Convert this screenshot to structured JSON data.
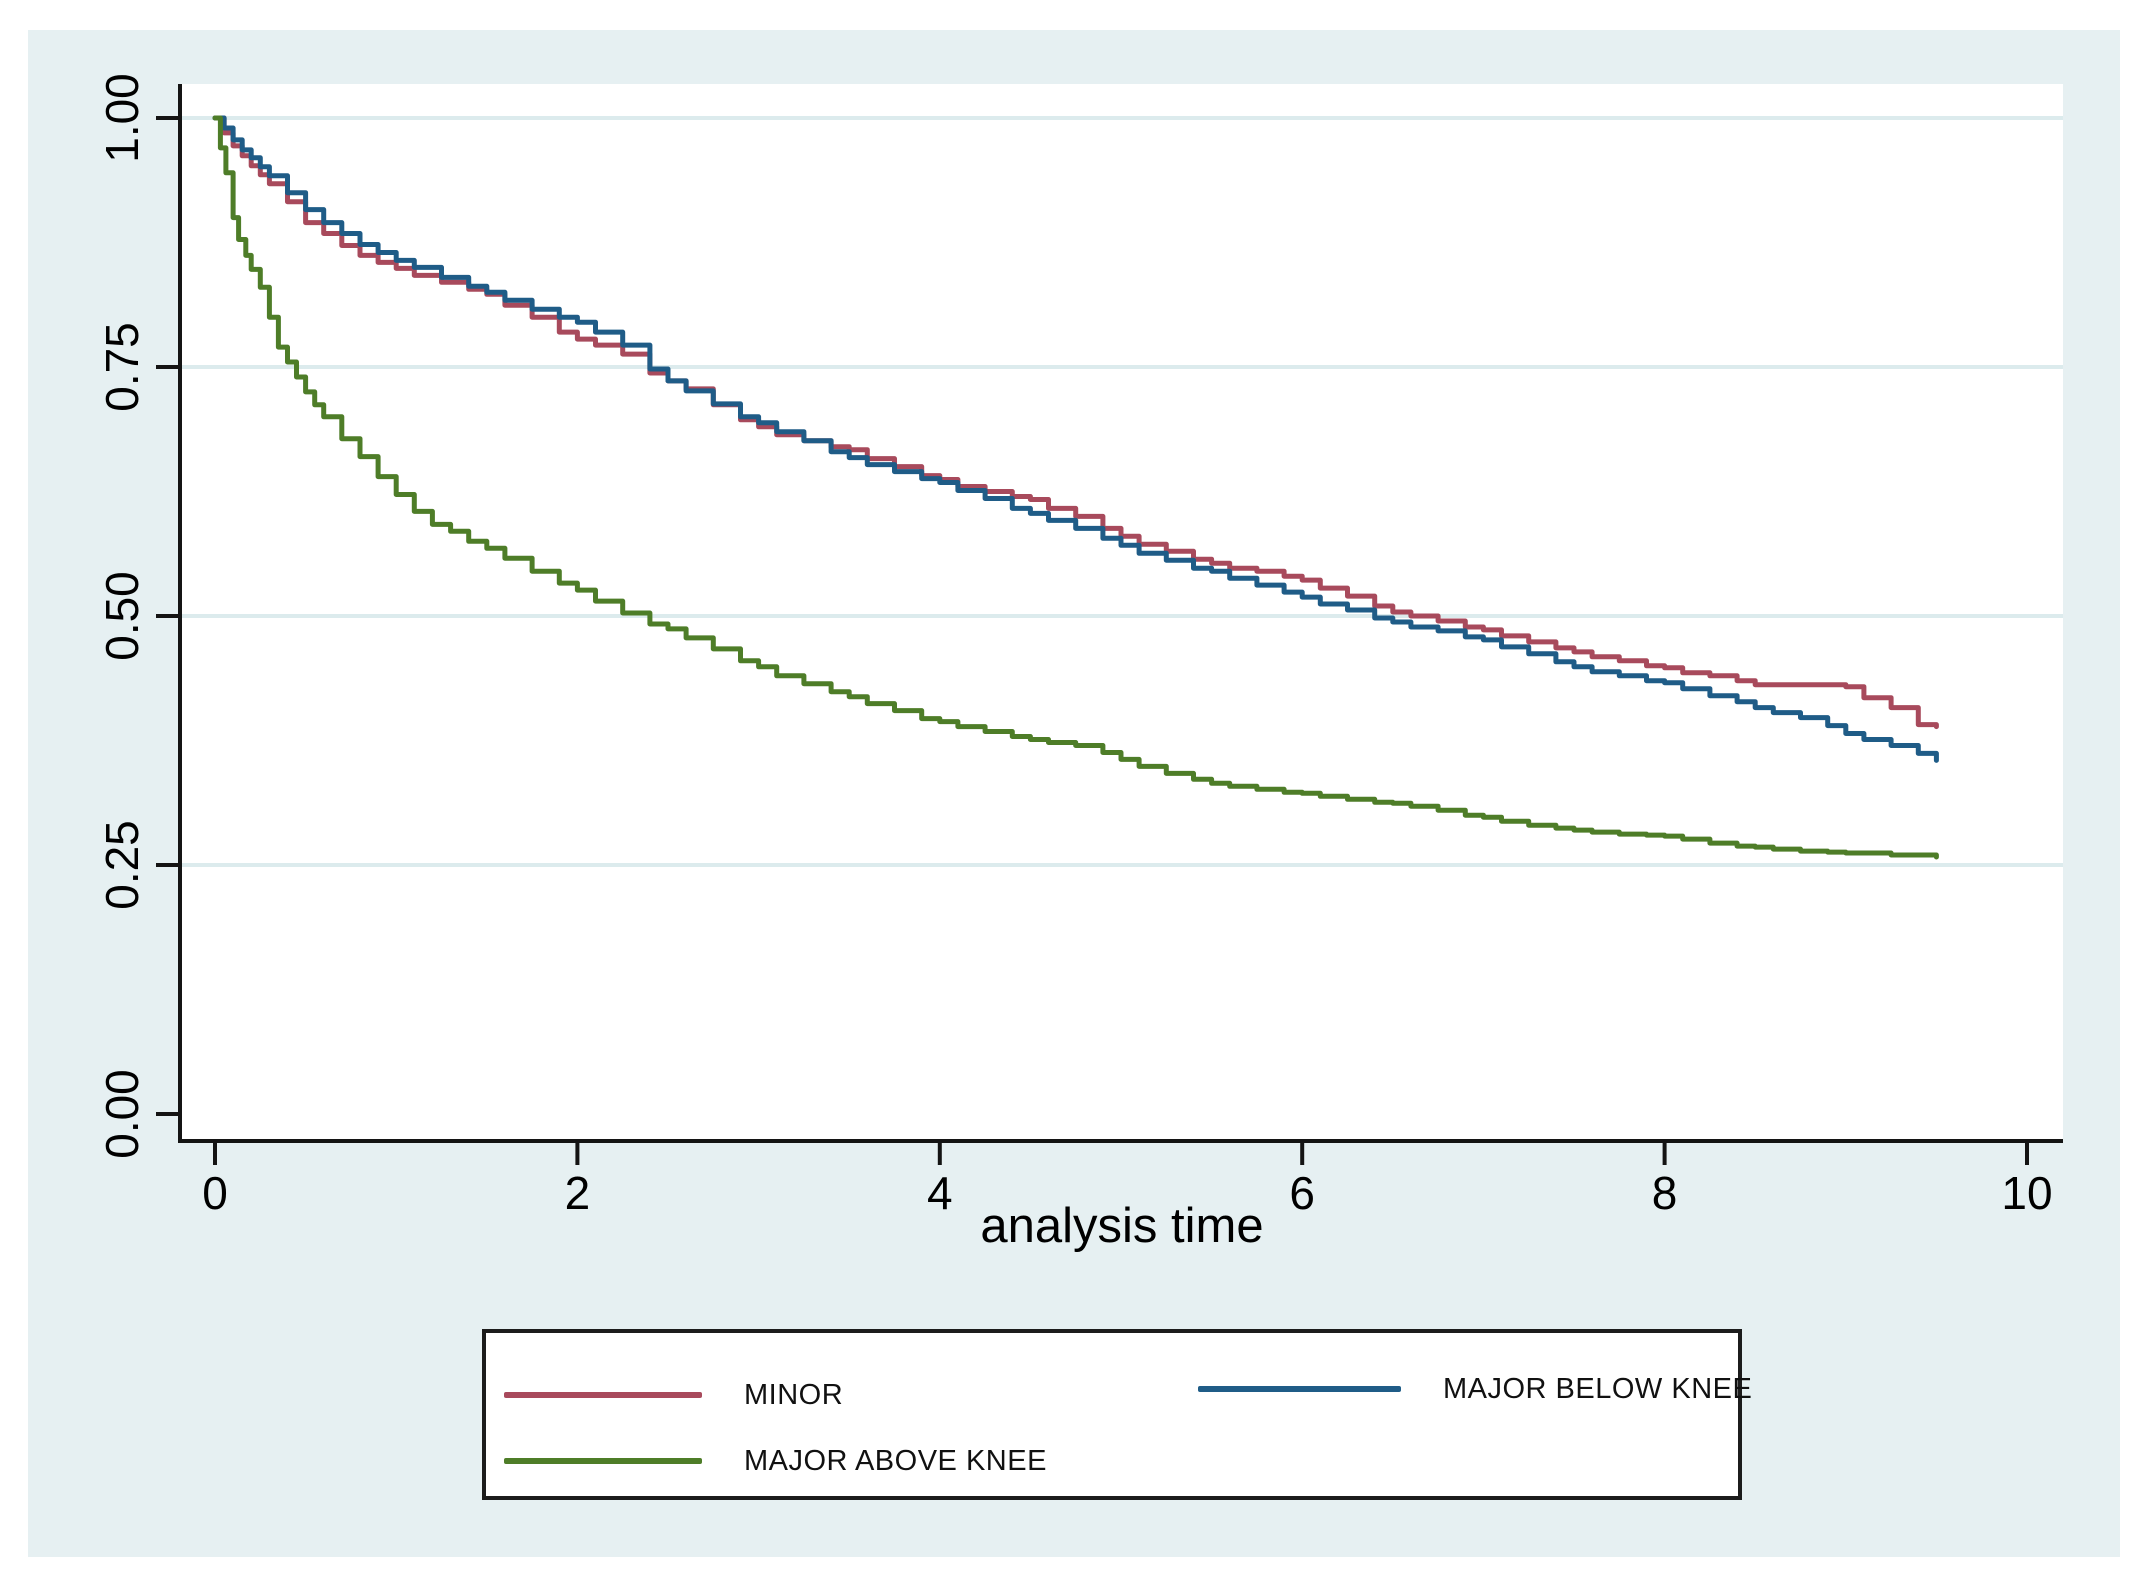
{
  "figure": {
    "xlabel": "analysis time",
    "x_tick_labels": [
      "0",
      "2",
      "4",
      "6",
      "8",
      "10"
    ],
    "y_tick_labels": [
      "0.00",
      "0.25",
      "0.50",
      "0.75",
      "1.00"
    ],
    "colors": {
      "canvas": "#e6f0f2",
      "plot_background": "#ffffff",
      "grid": "#dcebed",
      "axis": "#141414",
      "text": "#000000",
      "legend_border": "#1c1c1c",
      "legend_background": "#ffffff"
    }
  },
  "legend": {
    "items": [
      {
        "label": "MINOR",
        "series": "MINOR"
      },
      {
        "label": "MAJOR BELOW KNEE",
        "series": "MAJOR BELOW KNEE"
      },
      {
        "label": "MAJOR ABOVE KNEE",
        "series": "MAJOR ABOVE KNEE"
      }
    ]
  },
  "chart_data": {
    "type": "line",
    "style": "kaplan-meier-step",
    "title": "",
    "xlabel": "analysis time",
    "ylabel": "",
    "xlim": [
      0,
      10.3
    ],
    "ylim": [
      0,
      1.04
    ],
    "x_ticks": [
      0,
      2,
      4,
      6,
      8,
      10
    ],
    "y_ticks": [
      0,
      0.25,
      0.5,
      0.75,
      1.0
    ],
    "y_tick_labels": [
      "0.00",
      "0.25",
      "0.50",
      "0.75",
      "1.00"
    ],
    "grid": "horizontal",
    "legend_position": "bottom",
    "series": [
      {
        "name": "MINOR",
        "color": "#a84a5c",
        "points": [
          [
            0,
            1
          ],
          [
            0.05,
            0.985
          ],
          [
            0.1,
            0.972
          ],
          [
            0.15,
            0.962
          ],
          [
            0.2,
            0.952
          ],
          [
            0.25,
            0.943
          ],
          [
            0.3,
            0.934
          ],
          [
            0.4,
            0.916
          ],
          [
            0.5,
            0.895
          ],
          [
            0.6,
            0.884
          ],
          [
            0.7,
            0.872
          ],
          [
            0.8,
            0.862
          ],
          [
            0.9,
            0.855
          ],
          [
            1,
            0.849
          ],
          [
            1.1,
            0.842
          ],
          [
            1.25,
            0.835
          ],
          [
            1.4,
            0.828
          ],
          [
            1.5,
            0.823
          ],
          [
            1.6,
            0.812
          ],
          [
            1.75,
            0.8
          ],
          [
            1.9,
            0.785
          ],
          [
            2,
            0.778
          ],
          [
            2.1,
            0.772
          ],
          [
            2.25,
            0.763
          ],
          [
            2.4,
            0.744
          ],
          [
            2.5,
            0.736
          ],
          [
            2.6,
            0.728
          ],
          [
            2.75,
            0.712
          ],
          [
            2.9,
            0.697
          ],
          [
            3,
            0.69
          ],
          [
            3.1,
            0.682
          ],
          [
            3.25,
            0.676
          ],
          [
            3.4,
            0.67
          ],
          [
            3.5,
            0.667
          ],
          [
            3.6,
            0.658
          ],
          [
            3.75,
            0.65
          ],
          [
            3.9,
            0.641
          ],
          [
            4,
            0.637
          ],
          [
            4.1,
            0.63
          ],
          [
            4.25,
            0.625
          ],
          [
            4.4,
            0.62
          ],
          [
            4.5,
            0.617
          ],
          [
            4.6,
            0.608
          ],
          [
            4.75,
            0.6
          ],
          [
            4.9,
            0.588
          ],
          [
            5,
            0.58
          ],
          [
            5.1,
            0.572
          ],
          [
            5.25,
            0.565
          ],
          [
            5.4,
            0.557
          ],
          [
            5.5,
            0.553
          ],
          [
            5.6,
            0.548
          ],
          [
            5.75,
            0.545
          ],
          [
            5.9,
            0.54
          ],
          [
            6,
            0.536
          ],
          [
            6.1,
            0.528
          ],
          [
            6.25,
            0.52
          ],
          [
            6.4,
            0.51
          ],
          [
            6.5,
            0.504
          ],
          [
            6.6,
            0.5
          ],
          [
            6.75,
            0.495
          ],
          [
            6.9,
            0.489
          ],
          [
            7,
            0.486
          ],
          [
            7.1,
            0.48
          ],
          [
            7.25,
            0.474
          ],
          [
            7.4,
            0.468
          ],
          [
            7.5,
            0.464
          ],
          [
            7.6,
            0.459
          ],
          [
            7.75,
            0.455
          ],
          [
            7.9,
            0.45
          ],
          [
            8,
            0.448
          ],
          [
            8.1,
            0.443
          ],
          [
            8.25,
            0.44
          ],
          [
            8.4,
            0.435
          ],
          [
            8.5,
            0.431
          ],
          [
            9,
            0.429
          ],
          [
            9.1,
            0.418
          ],
          [
            9.25,
            0.408
          ],
          [
            9.4,
            0.391
          ],
          [
            9.5,
            0.389
          ]
        ]
      },
      {
        "name": "MAJOR BELOW KNEE",
        "color": "#1f5c87",
        "points": [
          [
            0,
            1
          ],
          [
            0.05,
            0.99
          ],
          [
            0.1,
            0.978
          ],
          [
            0.15,
            0.968
          ],
          [
            0.2,
            0.96
          ],
          [
            0.25,
            0.951
          ],
          [
            0.3,
            0.942
          ],
          [
            0.4,
            0.925
          ],
          [
            0.5,
            0.908
          ],
          [
            0.6,
            0.895
          ],
          [
            0.7,
            0.884
          ],
          [
            0.8,
            0.873
          ],
          [
            0.9,
            0.865
          ],
          [
            1,
            0.857
          ],
          [
            1.1,
            0.85
          ],
          [
            1.25,
            0.84
          ],
          [
            1.4,
            0.831
          ],
          [
            1.5,
            0.825
          ],
          [
            1.6,
            0.817
          ],
          [
            1.75,
            0.808
          ],
          [
            1.9,
            0.8
          ],
          [
            2,
            0.795
          ],
          [
            2.1,
            0.785
          ],
          [
            2.25,
            0.772
          ],
          [
            2.4,
            0.748
          ],
          [
            2.5,
            0.736
          ],
          [
            2.6,
            0.726
          ],
          [
            2.75,
            0.713
          ],
          [
            2.9,
            0.7
          ],
          [
            3,
            0.694
          ],
          [
            3.1,
            0.685
          ],
          [
            3.25,
            0.676
          ],
          [
            3.4,
            0.665
          ],
          [
            3.5,
            0.659
          ],
          [
            3.6,
            0.652
          ],
          [
            3.75,
            0.645
          ],
          [
            3.9,
            0.638
          ],
          [
            4,
            0.634
          ],
          [
            4.1,
            0.626
          ],
          [
            4.25,
            0.618
          ],
          [
            4.4,
            0.608
          ],
          [
            4.5,
            0.603
          ],
          [
            4.6,
            0.596
          ],
          [
            4.75,
            0.588
          ],
          [
            4.9,
            0.578
          ],
          [
            5,
            0.571
          ],
          [
            5.1,
            0.563
          ],
          [
            5.25,
            0.556
          ],
          [
            5.4,
            0.548
          ],
          [
            5.5,
            0.545
          ],
          [
            5.6,
            0.538
          ],
          [
            5.75,
            0.531
          ],
          [
            5.9,
            0.524
          ],
          [
            6,
            0.519
          ],
          [
            6.1,
            0.512
          ],
          [
            6.25,
            0.506
          ],
          [
            6.4,
            0.498
          ],
          [
            6.5,
            0.494
          ],
          [
            6.6,
            0.489
          ],
          [
            6.75,
            0.485
          ],
          [
            6.9,
            0.479
          ],
          [
            7,
            0.476
          ],
          [
            7.1,
            0.469
          ],
          [
            7.25,
            0.462
          ],
          [
            7.4,
            0.454
          ],
          [
            7.5,
            0.449
          ],
          [
            7.6,
            0.444
          ],
          [
            7.75,
            0.44
          ],
          [
            7.9,
            0.435
          ],
          [
            8,
            0.433
          ],
          [
            8.1,
            0.427
          ],
          [
            8.25,
            0.42
          ],
          [
            8.4,
            0.414
          ],
          [
            8.5,
            0.408
          ],
          [
            8.6,
            0.403
          ],
          [
            8.75,
            0.398
          ],
          [
            8.9,
            0.39
          ],
          [
            9,
            0.382
          ],
          [
            9.1,
            0.376
          ],
          [
            9.25,
            0.37
          ],
          [
            9.4,
            0.362
          ],
          [
            9.5,
            0.355
          ]
        ]
      },
      {
        "name": "MAJOR ABOVE KNEE",
        "color": "#4e7d28",
        "points": [
          [
            0,
            1
          ],
          [
            0.03,
            0.97
          ],
          [
            0.06,
            0.945
          ],
          [
            0.1,
            0.9
          ],
          [
            0.13,
            0.878
          ],
          [
            0.17,
            0.862
          ],
          [
            0.2,
            0.848
          ],
          [
            0.25,
            0.83
          ],
          [
            0.3,
            0.8
          ],
          [
            0.35,
            0.77
          ],
          [
            0.4,
            0.755
          ],
          [
            0.45,
            0.74
          ],
          [
            0.5,
            0.725
          ],
          [
            0.55,
            0.712
          ],
          [
            0.6,
            0.7
          ],
          [
            0.7,
            0.678
          ],
          [
            0.8,
            0.66
          ],
          [
            0.9,
            0.64
          ],
          [
            1,
            0.622
          ],
          [
            1.1,
            0.605
          ],
          [
            1.2,
            0.592
          ],
          [
            1.3,
            0.585
          ],
          [
            1.4,
            0.575
          ],
          [
            1.5,
            0.568
          ],
          [
            1.6,
            0.558
          ],
          [
            1.75,
            0.545
          ],
          [
            1.9,
            0.533
          ],
          [
            2,
            0.526
          ],
          [
            2.1,
            0.515
          ],
          [
            2.25,
            0.503
          ],
          [
            2.4,
            0.492
          ],
          [
            2.5,
            0.487
          ],
          [
            2.6,
            0.478
          ],
          [
            2.75,
            0.467
          ],
          [
            2.9,
            0.455
          ],
          [
            3,
            0.449
          ],
          [
            3.1,
            0.44
          ],
          [
            3.25,
            0.432
          ],
          [
            3.4,
            0.424
          ],
          [
            3.5,
            0.419
          ],
          [
            3.6,
            0.412
          ],
          [
            3.75,
            0.405
          ],
          [
            3.9,
            0.397
          ],
          [
            4,
            0.394
          ],
          [
            4.1,
            0.389
          ],
          [
            4.25,
            0.384
          ],
          [
            4.4,
            0.379
          ],
          [
            4.5,
            0.376
          ],
          [
            4.6,
            0.373
          ],
          [
            4.75,
            0.37
          ],
          [
            4.9,
            0.363
          ],
          [
            5,
            0.356
          ],
          [
            5.1,
            0.349
          ],
          [
            5.25,
            0.342
          ],
          [
            5.4,
            0.336
          ],
          [
            5.5,
            0.332
          ],
          [
            5.6,
            0.329
          ],
          [
            5.75,
            0.326
          ],
          [
            5.9,
            0.323
          ],
          [
            6,
            0.322
          ],
          [
            6.1,
            0.319
          ],
          [
            6.25,
            0.316
          ],
          [
            6.4,
            0.313
          ],
          [
            6.5,
            0.312
          ],
          [
            6.6,
            0.309
          ],
          [
            6.75,
            0.305
          ],
          [
            6.9,
            0.3
          ],
          [
            7,
            0.298
          ],
          [
            7.1,
            0.294
          ],
          [
            7.25,
            0.29
          ],
          [
            7.4,
            0.287
          ],
          [
            7.5,
            0.285
          ],
          [
            7.6,
            0.283
          ],
          [
            7.75,
            0.281
          ],
          [
            7.9,
            0.28
          ],
          [
            8,
            0.279
          ],
          [
            8.1,
            0.276
          ],
          [
            8.25,
            0.272
          ],
          [
            8.4,
            0.269
          ],
          [
            8.5,
            0.268
          ],
          [
            8.6,
            0.266
          ],
          [
            8.75,
            0.264
          ],
          [
            8.9,
            0.263
          ],
          [
            9,
            0.262
          ],
          [
            9.25,
            0.26
          ],
          [
            9.5,
            0.258
          ]
        ]
      }
    ]
  }
}
